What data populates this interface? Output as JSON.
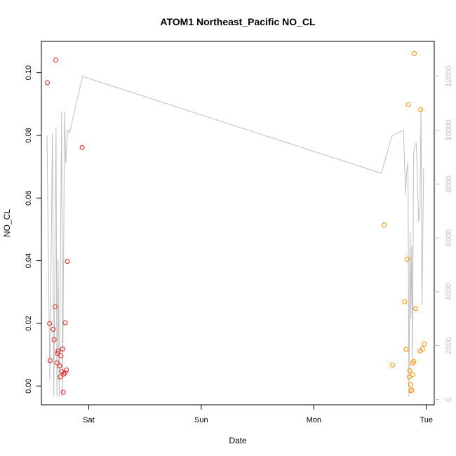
{
  "chart_data": {
    "type": "scatter",
    "title": "ATOM1 Northeast_Pacific NO_CL",
    "xlabel": "Date",
    "ylabel": "NO_CL",
    "xlim": [
      -0.42,
      3.07
    ],
    "ylim": [
      -0.006,
      0.11
    ],
    "y2lim": [
      -200,
      13300
    ],
    "grid": false,
    "x_ticks": [
      {
        "value": 0,
        "label": "Sat"
      },
      {
        "value": 1,
        "label": "Sun"
      },
      {
        "value": 2,
        "label": "Mon"
      },
      {
        "value": 3,
        "label": "Tue"
      }
    ],
    "y_ticks": [
      {
        "value": 0.0,
        "label": "0.00"
      },
      {
        "value": 0.02,
        "label": "0.02"
      },
      {
        "value": 0.04,
        "label": "0.04"
      },
      {
        "value": 0.06,
        "label": "0.06"
      },
      {
        "value": 0.08,
        "label": "0.08"
      },
      {
        "value": 0.1,
        "label": "0.10"
      }
    ],
    "y2_ticks": [
      {
        "value": 0,
        "label": "0"
      },
      {
        "value": 2000,
        "label": "2000"
      },
      {
        "value": 4000,
        "label": "4000"
      },
      {
        "value": 6000,
        "label": "6000"
      },
      {
        "value": 8000,
        "label": "8000"
      },
      {
        "value": 10000,
        "label": "10000"
      },
      {
        "value": 12000,
        "label": "12000"
      }
    ],
    "series": [
      {
        "color": "#e41a1c",
        "points": [
          [
            -0.367,
            0.0968
          ],
          [
            -0.347,
            0.0199
          ],
          [
            -0.343,
            0.0081
          ],
          [
            -0.315,
            0.0181
          ],
          [
            -0.307,
            0.0148
          ],
          [
            -0.298,
            0.0253
          ],
          [
            -0.292,
            0.104
          ],
          [
            -0.282,
            0.0074
          ],
          [
            -0.277,
            0.0104
          ],
          [
            -0.271,
            0.0111
          ],
          [
            -0.258,
            0.0064
          ],
          [
            -0.253,
            0.0029
          ],
          [
            -0.246,
            0.0096
          ],
          [
            -0.238,
            0.0046
          ],
          [
            -0.231,
            0.0118
          ],
          [
            -0.226,
            -0.002
          ],
          [
            -0.222,
            0.0038
          ],
          [
            -0.211,
            0.0042
          ],
          [
            -0.208,
            0.0202
          ],
          [
            -0.198,
            0.0051
          ],
          [
            -0.189,
            0.0398
          ],
          [
            -0.058,
            0.0761
          ]
        ]
      },
      {
        "color": "#ff8c00",
        "points": [
          [
            2.625,
            0.0514
          ],
          [
            2.7,
            0.0067
          ],
          [
            2.807,
            0.0269
          ],
          [
            2.82,
            0.0117
          ],
          [
            2.83,
            0.0405
          ],
          [
            2.84,
            0.0898
          ],
          [
            2.848,
            0.0029
          ],
          [
            2.852,
            0.0049
          ],
          [
            2.86,
            0.0004
          ],
          [
            2.864,
            -0.0015
          ],
          [
            2.87,
            -0.0013
          ],
          [
            2.876,
            0.0073
          ],
          [
            2.88,
            0.0037
          ],
          [
            2.888,
            0.0078
          ],
          [
            2.893,
            0.1061
          ],
          [
            2.905,
            0.0247
          ],
          [
            2.945,
            0.0112
          ],
          [
            2.95,
            0.0882
          ],
          [
            2.966,
            0.0118
          ],
          [
            2.982,
            0.0134
          ]
        ]
      },
      {
        "axis": "right",
        "color": "#bebebe",
        "line": [
          [
            -0.37,
            9800
          ],
          [
            -0.345,
            700
          ],
          [
            -0.322,
            9900
          ],
          [
            -0.31,
            100
          ],
          [
            -0.29,
            10100
          ],
          [
            -0.282,
            100
          ],
          [
            -0.272,
            5200
          ],
          [
            -0.262,
            100
          ],
          [
            -0.24,
            10700
          ],
          [
            -0.232,
            100
          ],
          [
            -0.214,
            10700
          ],
          [
            -0.204,
            8800
          ],
          [
            -0.187,
            10000
          ],
          [
            -0.17,
            9900
          ],
          [
            -0.055,
            12000
          ],
          [
            2.6,
            8400
          ],
          [
            2.695,
            9800
          ],
          [
            2.797,
            10000
          ],
          [
            2.815,
            7600
          ],
          [
            2.824,
            8400
          ],
          [
            2.836,
            8800
          ],
          [
            2.845,
            100
          ],
          [
            2.855,
            6200
          ],
          [
            2.862,
            3000
          ],
          [
            2.87,
            5700
          ],
          [
            2.876,
            1300
          ],
          [
            2.886,
            9100
          ],
          [
            2.899,
            9500
          ],
          [
            2.911,
            9500
          ],
          [
            2.931,
            6600
          ],
          [
            2.943,
            7000
          ],
          [
            2.952,
            10800
          ],
          [
            2.961,
            3500
          ],
          [
            2.976,
            8600
          ]
        ]
      }
    ]
  }
}
